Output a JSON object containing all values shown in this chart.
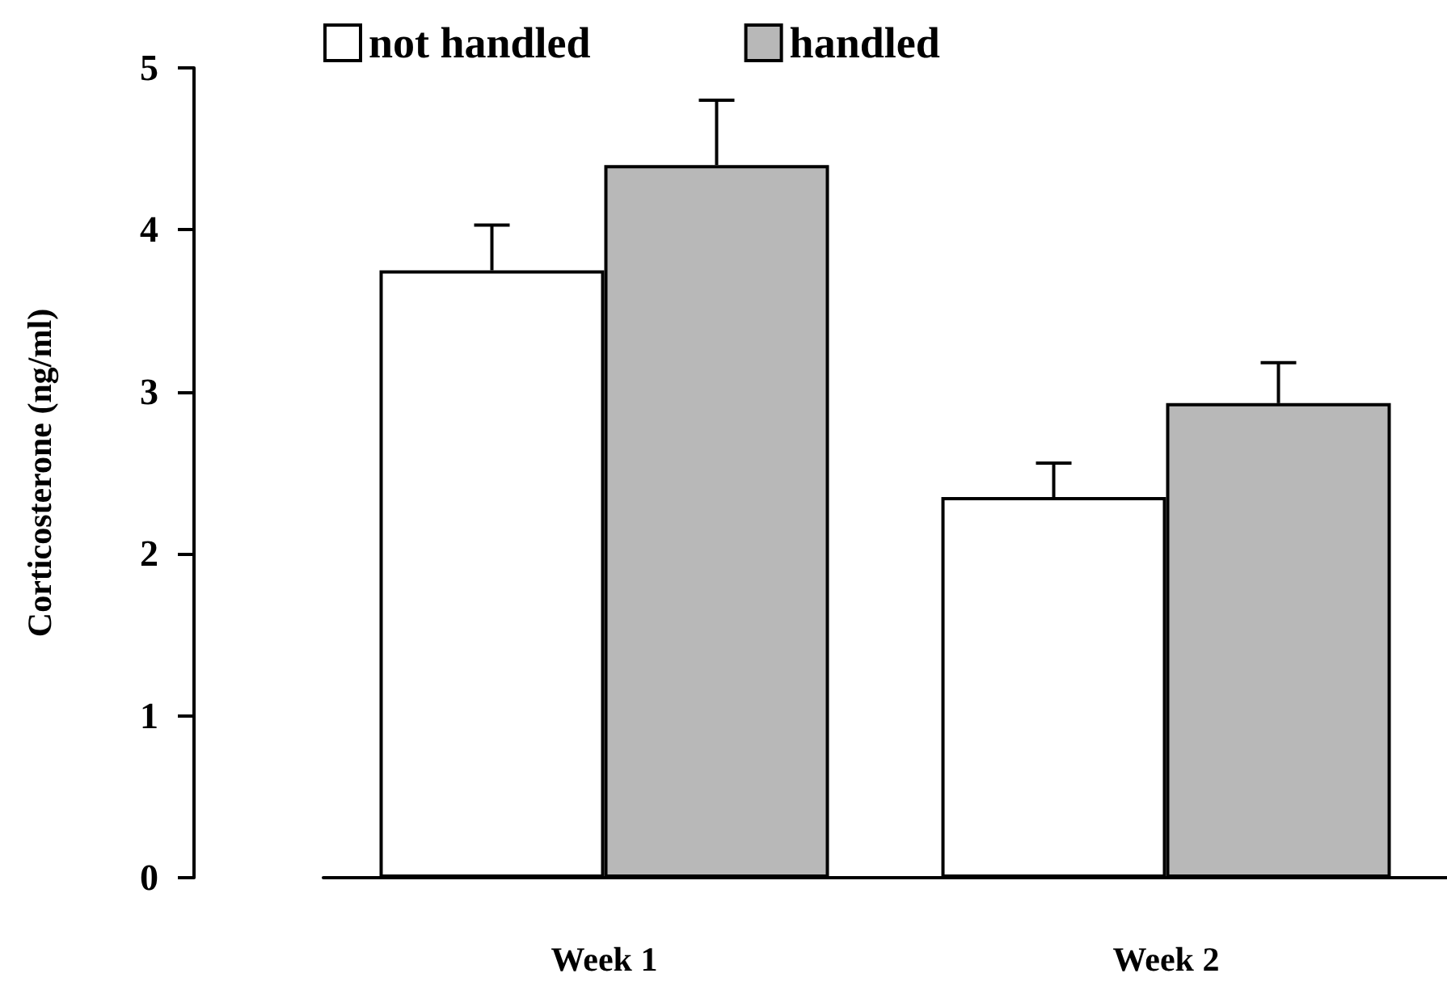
{
  "chart_data": {
    "type": "bar",
    "ylabel": "Corticosterone (ng/ml)",
    "categories": [
      "Week 1",
      "Week 2"
    ],
    "series": [
      {
        "name": "not handled",
        "color": "#ffffff",
        "values": [
          3.75,
          2.35
        ],
        "errors": [
          [
            3.75,
            4.03
          ],
          [
            2.35,
            2.56
          ]
        ]
      },
      {
        "name": "handled",
        "color": "#b8b8b8",
        "values": [
          4.4,
          2.93
        ],
        "errors": [
          [
            4.4,
            4.8
          ],
          [
            2.93,
            3.18
          ]
        ]
      }
    ],
    "ylim": [
      0,
      5
    ],
    "yticks": [
      0,
      1,
      2,
      3,
      4,
      5
    ],
    "legend": "top"
  }
}
